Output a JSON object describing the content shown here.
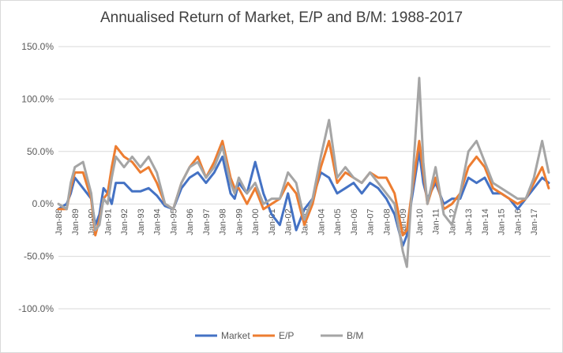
{
  "chart_data": {
    "type": "line",
    "title": "Annualised Return of Market, E/P and B/M: 1988-2017",
    "xlabel": "",
    "ylabel": "",
    "ylim": [
      -1.0,
      1.5
    ],
    "y_ticks": [
      "150.0%",
      "100.0%",
      "50.0%",
      "0.0%",
      "-50.0%",
      "-100.0%"
    ],
    "y_tick_values": [
      1.5,
      1.0,
      0.5,
      0.0,
      -0.5,
      -1.0
    ],
    "x_tick_labels": [
      "Jan-88",
      "Jan-89",
      "Jan-90",
      "Jan-91",
      "Jan-92",
      "Jan-93",
      "Jan-94",
      "Jan-95",
      "Jan-96",
      "Jan-97",
      "Jan-98",
      "Jan-99",
      "Jan-00",
      "Jan-01",
      "Jan-02",
      "Jan-03",
      "Jan-04",
      "Jan-05",
      "Jan-06",
      "Jan-07",
      "Jan-08",
      "Jan-09",
      "Jan-10",
      "Jan-11",
      "Jan-12",
      "Jan-13",
      "Jan-14",
      "Jan-15",
      "Jan-16",
      "Jan-17"
    ],
    "x_start": 1988.0,
    "x_end": 2018.0,
    "grid": true,
    "legend_position": "bottom",
    "series": [
      {
        "name": "Market",
        "color": "#4472c4",
        "x": [
          1988.0,
          1988.5,
          1988.75,
          1989.0,
          1989.5,
          1990.0,
          1990.25,
          1990.5,
          1990.75,
          1991.0,
          1991.25,
          1991.5,
          1992.0,
          1992.5,
          1993.0,
          1993.5,
          1994.0,
          1994.5,
          1995.0,
          1995.5,
          1996.0,
          1996.5,
          1997.0,
          1997.5,
          1998.0,
          1998.5,
          1998.75,
          1999.0,
          1999.5,
          2000.0,
          2000.5,
          2001.0,
          2001.5,
          2002.0,
          2002.5,
          2003.0,
          2003.5,
          2004.0,
          2004.5,
          2005.0,
          2005.5,
          2006.0,
          2006.5,
          2007.0,
          2007.5,
          2008.0,
          2008.5,
          2009.0,
          2009.25,
          2009.5,
          2010.0,
          2010.25,
          2010.5,
          2011.0,
          2011.5,
          2012.0,
          2012.5,
          2013.0,
          2013.5,
          2014.0,
          2014.5,
          2015.0,
          2015.5,
          2016.0,
          2016.5,
          2017.0,
          2017.5,
          2017.9
        ],
        "values": [
          -0.05,
          0.0,
          0.1,
          0.25,
          0.15,
          0.05,
          -0.2,
          -0.1,
          0.15,
          0.1,
          0.0,
          0.2,
          0.2,
          0.12,
          0.12,
          0.15,
          0.08,
          -0.02,
          -0.05,
          0.15,
          0.25,
          0.3,
          0.2,
          0.3,
          0.45,
          0.1,
          0.05,
          0.2,
          0.1,
          0.4,
          0.1,
          -0.1,
          -0.2,
          0.1,
          -0.25,
          -0.05,
          0.05,
          0.3,
          0.25,
          0.1,
          0.15,
          0.2,
          0.1,
          0.2,
          0.15,
          0.05,
          -0.1,
          -0.4,
          -0.3,
          0.0,
          0.5,
          0.2,
          0.05,
          0.2,
          0.0,
          0.05,
          0.05,
          0.25,
          0.2,
          0.25,
          0.1,
          0.1,
          0.05,
          -0.05,
          0.05,
          0.15,
          0.25,
          0.2
        ]
      },
      {
        "name": "E/P",
        "color": "#ed7d31",
        "x": [
          1988.0,
          1988.5,
          1988.75,
          1989.0,
          1989.5,
          1990.0,
          1990.25,
          1990.5,
          1990.75,
          1991.0,
          1991.25,
          1991.5,
          1992.0,
          1992.5,
          1993.0,
          1993.5,
          1994.0,
          1994.5,
          1995.0,
          1995.5,
          1996.0,
          1996.5,
          1997.0,
          1997.5,
          1998.0,
          1998.5,
          1998.75,
          1999.0,
          1999.5,
          2000.0,
          2000.5,
          2001.0,
          2001.5,
          2002.0,
          2002.5,
          2003.0,
          2003.5,
          2004.0,
          2004.5,
          2005.0,
          2005.5,
          2006.0,
          2006.5,
          2007.0,
          2007.5,
          2008.0,
          2008.5,
          2009.0,
          2009.25,
          2009.5,
          2010.0,
          2010.25,
          2010.5,
          2011.0,
          2011.5,
          2012.0,
          2012.5,
          2013.0,
          2013.5,
          2014.0,
          2014.5,
          2015.0,
          2015.5,
          2016.0,
          2016.5,
          2017.0,
          2017.5,
          2017.9
        ],
        "values": [
          -0.05,
          -0.05,
          0.15,
          0.3,
          0.3,
          0.05,
          -0.3,
          -0.15,
          0.05,
          0.1,
          0.35,
          0.55,
          0.45,
          0.4,
          0.3,
          0.35,
          0.2,
          0.0,
          -0.05,
          0.2,
          0.35,
          0.45,
          0.25,
          0.4,
          0.6,
          0.25,
          0.15,
          0.15,
          0.0,
          0.15,
          -0.05,
          0.0,
          0.05,
          0.2,
          0.1,
          -0.2,
          0.0,
          0.35,
          0.6,
          0.2,
          0.3,
          0.25,
          0.2,
          0.3,
          0.25,
          0.25,
          0.1,
          -0.3,
          -0.25,
          0.05,
          0.6,
          0.3,
          0.0,
          0.25,
          -0.05,
          0.0,
          0.1,
          0.35,
          0.45,
          0.35,
          0.15,
          0.1,
          0.05,
          0.0,
          0.05,
          0.2,
          0.35,
          0.15
        ]
      },
      {
        "name": "B/M",
        "color": "#a5a5a5",
        "x": [
          1988.0,
          1988.5,
          1988.75,
          1989.0,
          1989.5,
          1990.0,
          1990.25,
          1990.5,
          1990.75,
          1991.0,
          1991.25,
          1991.5,
          1992.0,
          1992.5,
          1993.0,
          1993.5,
          1994.0,
          1994.5,
          1995.0,
          1995.5,
          1996.0,
          1996.5,
          1997.0,
          1997.5,
          1998.0,
          1998.5,
          1998.75,
          1999.0,
          1999.5,
          2000.0,
          2000.5,
          2001.0,
          2001.5,
          2002.0,
          2002.5,
          2003.0,
          2003.5,
          2004.0,
          2004.5,
          2005.0,
          2005.5,
          2006.0,
          2006.5,
          2007.0,
          2007.5,
          2008.0,
          2008.5,
          2009.0,
          2009.25,
          2009.5,
          2010.0,
          2010.25,
          2010.5,
          2011.0,
          2011.5,
          2012.0,
          2012.5,
          2013.0,
          2013.5,
          2014.0,
          2014.5,
          2015.0,
          2015.5,
          2016.0,
          2016.5,
          2017.0,
          2017.5,
          2017.9
        ],
        "values": [
          0.0,
          -0.05,
          0.2,
          0.35,
          0.4,
          0.1,
          -0.25,
          -0.2,
          0.05,
          0.0,
          0.25,
          0.45,
          0.35,
          0.45,
          0.35,
          0.45,
          0.3,
          0.0,
          -0.05,
          0.2,
          0.35,
          0.4,
          0.25,
          0.35,
          0.55,
          0.2,
          0.1,
          0.25,
          0.1,
          0.2,
          0.0,
          0.05,
          0.05,
          0.3,
          0.2,
          -0.15,
          0.05,
          0.45,
          0.8,
          0.25,
          0.35,
          0.25,
          0.2,
          0.3,
          0.2,
          0.1,
          0.0,
          -0.45,
          -0.6,
          0.0,
          1.2,
          0.4,
          0.0,
          0.35,
          -0.1,
          -0.2,
          0.1,
          0.5,
          0.6,
          0.4,
          0.2,
          0.15,
          0.1,
          0.05,
          0.05,
          0.25,
          0.6,
          0.3
        ]
      }
    ]
  }
}
